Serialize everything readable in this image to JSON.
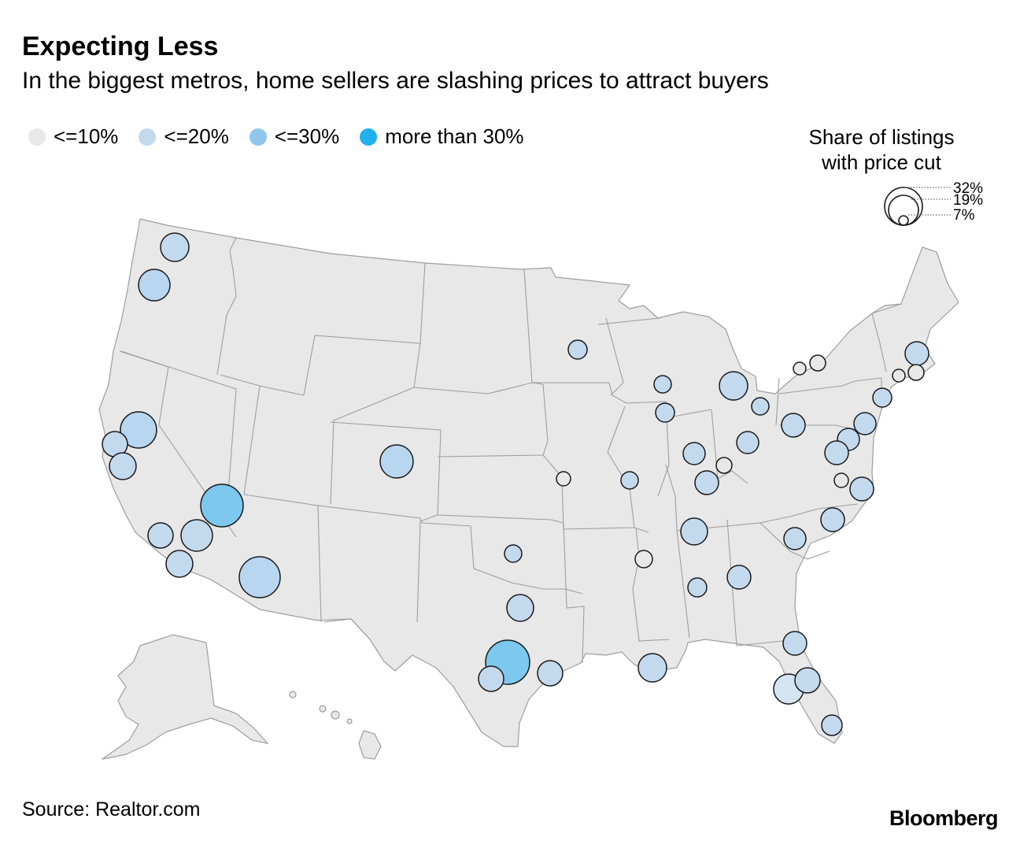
{
  "header": {
    "title": "Expecting Less",
    "subtitle": "In the biggest metros, home sellers are slashing prices to attract buyers"
  },
  "legend": {
    "items": [
      {
        "label": "<=10%",
        "color": "#e8e8e8"
      },
      {
        "label": "<=20%",
        "color": "#c3d9ee"
      },
      {
        "label": "<=30%",
        "color": "#8ec6ee"
      },
      {
        "label": "more than 30%",
        "color": "#1fb0ee"
      }
    ]
  },
  "size_legend": {
    "title_line1": "Share of listings",
    "title_line2": "with price cut",
    "values": [
      "32%",
      "19%",
      "7%"
    ]
  },
  "footer": {
    "source": "Source: Realtor.com",
    "brand": "Bloomberg"
  },
  "colors": {
    "land": "#e8e8e8",
    "border": "#9e9e9e",
    "bubble_stroke": "#1a1a1a"
  }
}
